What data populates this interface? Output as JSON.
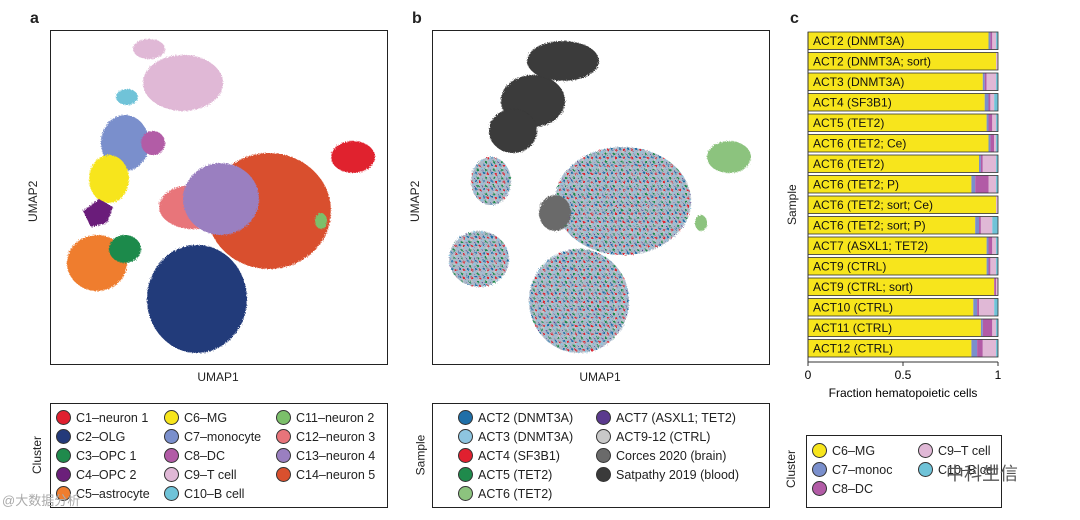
{
  "panels": {
    "a": {
      "label": "a",
      "xlabel": "UMAP1",
      "ylabel": "UMAP2"
    },
    "b": {
      "label": "b",
      "xlabel": "UMAP1",
      "ylabel": "UMAP2"
    },
    "c": {
      "label": "c",
      "xlabel": "Fraction hematopoietic cells",
      "ylabel": "Sample"
    }
  },
  "legend_a": {
    "title": "Cluster",
    "items": [
      {
        "label": "C1–neuron 1",
        "color": "#e0202f"
      },
      {
        "label": "C2–OLG",
        "color": "#243a7a"
      },
      {
        "label": "C3–OPC 1",
        "color": "#1f8a4c"
      },
      {
        "label": "C4–OPC 2",
        "color": "#6b1f7a"
      },
      {
        "label": "C5–astrocyte",
        "color": "#ef7d2e"
      },
      {
        "label": "C6–MG",
        "color": "#f7e51c"
      },
      {
        "label": "C7–monocyte",
        "color": "#7a8fcc"
      },
      {
        "label": "C8–DC",
        "color": "#b25ba6"
      },
      {
        "label": "C9–T cell",
        "color": "#e0b8d6"
      },
      {
        "label": "C10–B cell",
        "color": "#6fc3d8"
      },
      {
        "label": "C11–neuron 2",
        "color": "#7bbf6a"
      },
      {
        "label": "C12–neuron 3",
        "color": "#e8747a"
      },
      {
        "label": "C13–neuron 4",
        "color": "#9a7fc0"
      },
      {
        "label": "C14–neuron 5",
        "color": "#d9502e"
      }
    ]
  },
  "legend_b": {
    "title": "Sample",
    "items": [
      {
        "label": "ACT2 (DNMT3A)",
        "color": "#1f6fa8"
      },
      {
        "label": "ACT3 (DNMT3A)",
        "color": "#8ec5e0"
      },
      {
        "label": "ACT4 (SF3B1)",
        "color": "#e0202f"
      },
      {
        "label": "ACT5 (TET2)",
        "color": "#1f8a4c"
      },
      {
        "label": "ACT6 (TET2)",
        "color": "#8cc37e"
      },
      {
        "label": "ACT7 (ASXL1; TET2)",
        "color": "#5b3a8e"
      },
      {
        "label": "ACT9-12 (CTRL)",
        "color": "#c8c8c8"
      },
      {
        "label": "Corces 2020 (brain)",
        "color": "#6a6a6a"
      },
      {
        "label": "Satpathy 2019 (blood)",
        "color": "#3a3a3a"
      }
    ]
  },
  "legend_c": {
    "title": "Cluster",
    "items": [
      {
        "label": "C6–MG",
        "color": "#f7e51c"
      },
      {
        "label": "C7–monoc",
        "color": "#7a8fcc"
      },
      {
        "label": "C8–DC",
        "color": "#b25ba6"
      },
      {
        "label": "C9–T cell",
        "color": "#e0b8d6"
      },
      {
        "label": "C10–B cell",
        "color": "#6fc3d8"
      }
    ]
  },
  "watermarks": {
    "left": "@大数据分析",
    "right": "中科生信"
  },
  "chart_data": [
    {
      "type": "scatter",
      "title": "",
      "xlabel": "UMAP1",
      "ylabel": "UMAP2",
      "note": "UMAP embedding colored by cluster",
      "series": [
        "C1–neuron 1",
        "C2–OLG",
        "C3–OPC 1",
        "C4–OPC 2",
        "C5–astrocyte",
        "C6–MG",
        "C7–monocyte",
        "C8–DC",
        "C9–T cell",
        "C10–B cell",
        "C11–neuron 2",
        "C12–neuron 3",
        "C13–neuron 4",
        "C14–neuron 5"
      ]
    },
    {
      "type": "scatter",
      "title": "",
      "xlabel": "UMAP1",
      "ylabel": "UMAP2",
      "note": "UMAP embedding colored by sample",
      "series": [
        "ACT2 (DNMT3A)",
        "ACT3 (DNMT3A)",
        "ACT4 (SF3B1)",
        "ACT5 (TET2)",
        "ACT6 (TET2)",
        "ACT7 (ASXL1; TET2)",
        "ACT9-12 (CTRL)",
        "Corces 2020 (brain)",
        "Satpathy 2019 (blood)"
      ]
    },
    {
      "type": "bar",
      "orientation": "horizontal-stacked",
      "xlabel": "Fraction hematopoietic cells",
      "ylabel": "Sample",
      "xlim": [
        0,
        1
      ],
      "xticks": [
        "0",
        "0.5",
        "1"
      ],
      "categories": [
        "ACT2 (DNMT3A)",
        "ACT2 (DNMT3A; sort)",
        "ACT3 (DNMT3A)",
        "ACT4 (SF3B1)",
        "ACT5 (TET2)",
        "ACT6 (TET2; Ce)",
        "ACT6 (TET2)",
        "ACT6 (TET2; P)",
        "ACT6 (TET2; sort; Ce)",
        "ACT6 (TET2; sort; P)",
        "ACT7 (ASXL1; TET2)",
        "ACT9 (CTRL)",
        "ACT9 (CTRL; sort)",
        "ACT10 (CTRL)",
        "ACT11 (CTRL)",
        "ACT12 (CTRL)"
      ],
      "series": [
        {
          "name": "C6–MG",
          "color": "#f7e51c",
          "values": [
            0.95,
            0.99,
            0.92,
            0.93,
            0.94,
            0.95,
            0.9,
            0.86,
            0.99,
            0.88,
            0.94,
            0.94,
            0.98,
            0.87,
            0.91,
            0.86
          ]
        },
        {
          "name": "C7–monocyte",
          "color": "#7a8fcc",
          "values": [
            0.01,
            0.0,
            0.01,
            0.02,
            0.01,
            0.01,
            0.01,
            0.02,
            0.0,
            0.02,
            0.01,
            0.01,
            0.0,
            0.02,
            0.01,
            0.03
          ]
        },
        {
          "name": "C8–DC",
          "color": "#b25ba6",
          "values": [
            0.01,
            0.0,
            0.01,
            0.01,
            0.02,
            0.02,
            0.01,
            0.07,
            0.0,
            0.01,
            0.02,
            0.01,
            0.01,
            0.01,
            0.05,
            0.03
          ]
        },
        {
          "name": "C9–T cell",
          "color": "#e0b8d6",
          "values": [
            0.02,
            0.01,
            0.05,
            0.02,
            0.02,
            0.01,
            0.07,
            0.04,
            0.01,
            0.06,
            0.02,
            0.03,
            0.01,
            0.08,
            0.02,
            0.07
          ]
        },
        {
          "name": "C10–B cell",
          "color": "#6fc3d8",
          "values": [
            0.01,
            0.0,
            0.01,
            0.02,
            0.01,
            0.01,
            0.01,
            0.01,
            0.0,
            0.03,
            0.01,
            0.01,
            0.0,
            0.02,
            0.01,
            0.01
          ]
        }
      ]
    }
  ]
}
